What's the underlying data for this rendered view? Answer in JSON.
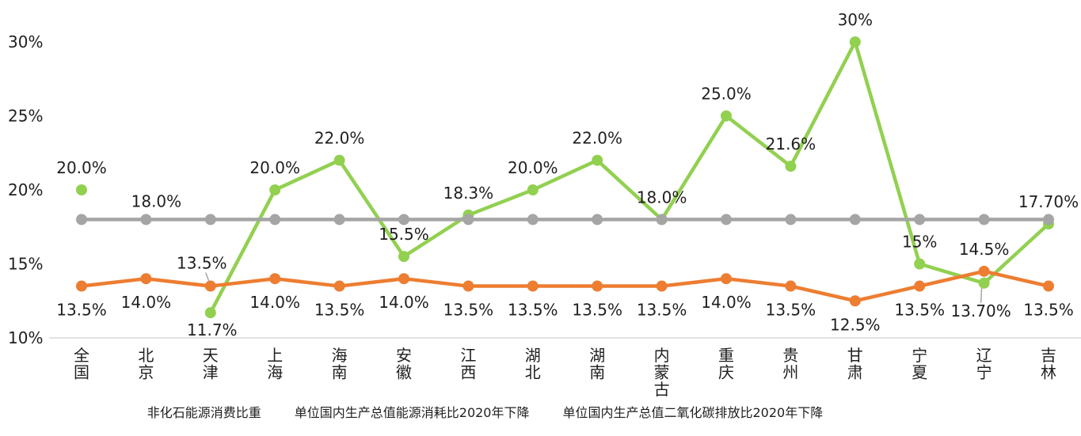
{
  "chart_data": {
    "type": "line",
    "title": "",
    "xlabel": "",
    "ylabel": "",
    "categories": [
      "全国",
      "北京",
      "天津",
      "上海",
      "海南",
      "安徽",
      "江西",
      "湖北",
      "湖南",
      "内蒙古",
      "重庆",
      "贵州",
      "甘肃",
      "宁夏",
      "辽宁",
      "吉林"
    ],
    "y_axis": {
      "tick_labels": [
        "10%",
        "15%",
        "20%",
        "25%",
        "30%"
      ],
      "tick_values": [
        10,
        15,
        20,
        25,
        30
      ],
      "min": 10,
      "max": 30,
      "grid": false
    },
    "legend_position": "bottom",
    "axis_color": "#D9D9D9",
    "text_color": "#1f1f1f",
    "leader_color": "#A6A6A6",
    "series": [
      {
        "id": "non-fossil-energy-share",
        "name": "非化石能源消费比重",
        "color": "#92D050",
        "values": [
          20.0,
          null,
          11.7,
          20.0,
          22.0,
          15.5,
          18.3,
          20.0,
          22.0,
          18.0,
          25.0,
          21.6,
          30.0,
          15.0,
          13.7,
          17.7
        ],
        "point_labels": [
          {
            "text": "20.0%",
            "pos": "above"
          },
          null,
          {
            "text": "11.7%",
            "pos": "below",
            "offset": [
              2,
              22
            ]
          },
          {
            "text": "20.0%",
            "pos": "above"
          },
          {
            "text": "22.0%",
            "pos": "above"
          },
          {
            "text": "15.5%",
            "pos": "above"
          },
          {
            "text": "18.3%",
            "pos": "above"
          },
          {
            "text": "20.0%",
            "pos": "above"
          },
          {
            "text": "22.0%",
            "pos": "above"
          },
          {
            "text": "18.0%",
            "pos": "above"
          },
          {
            "text": "25.0%",
            "pos": "above"
          },
          {
            "text": "21.6%",
            "pos": "above"
          },
          {
            "text": "30%",
            "pos": "above"
          },
          {
            "text": "15%",
            "pos": "above"
          },
          {
            "text": "13.70%",
            "pos": "below",
            "offset": [
              -4,
              35
            ],
            "leader": [
              [
                -3,
                6
              ],
              [
                -4,
                25
              ]
            ]
          },
          {
            "text": "17.70%",
            "pos": "above"
          }
        ]
      },
      {
        "id": "energy-intensity-decline",
        "name": "单位国内生产总值能源消耗比2020年下降",
        "color": "#ED7D31",
        "values": [
          13.5,
          14.0,
          13.5,
          14.0,
          13.5,
          14.0,
          13.5,
          13.5,
          13.5,
          13.5,
          14.0,
          13.5,
          12.5,
          13.5,
          14.5,
          13.5
        ],
        "point_labels": [
          {
            "text": "13.5%",
            "pos": "below"
          },
          {
            "text": "14.0%",
            "pos": "below"
          },
          {
            "text": "13.5%",
            "pos": "above",
            "offset": [
              -11,
              -29
            ],
            "leader": [
              [
                -6,
                -17
              ],
              [
                -2,
                -6
              ]
            ]
          },
          {
            "text": "14.0%",
            "pos": "below"
          },
          {
            "text": "13.5%",
            "pos": "below"
          },
          {
            "text": "14.0%",
            "pos": "below"
          },
          {
            "text": "13.5%",
            "pos": "below"
          },
          {
            "text": "13.5%",
            "pos": "below"
          },
          {
            "text": "13.5%",
            "pos": "below"
          },
          {
            "text": "13.5%",
            "pos": "below"
          },
          {
            "text": "14.0%",
            "pos": "below"
          },
          {
            "text": "13.5%",
            "pos": "below"
          },
          {
            "text": "12.5%",
            "pos": "below"
          },
          {
            "text": "13.5%",
            "pos": "below"
          },
          {
            "text": "14.5%",
            "pos": "above"
          },
          {
            "text": "13.5%",
            "pos": "below"
          }
        ]
      },
      {
        "id": "co2-intensity-decline",
        "name": "单位国内生产总值二氧化碳排放比2020年下降",
        "color": "#A5A5A5",
        "values": [
          18,
          18,
          18,
          18,
          18,
          18,
          18,
          18,
          18,
          18,
          18,
          18,
          18,
          18,
          18,
          18
        ],
        "point_labels": [
          null,
          {
            "text": "18.0%",
            "pos": "above",
            "offset": [
              13,
              -23
            ]
          },
          null,
          null,
          null,
          null,
          null,
          null,
          null,
          null,
          null,
          null,
          null,
          null,
          null,
          null
        ]
      }
    ]
  }
}
